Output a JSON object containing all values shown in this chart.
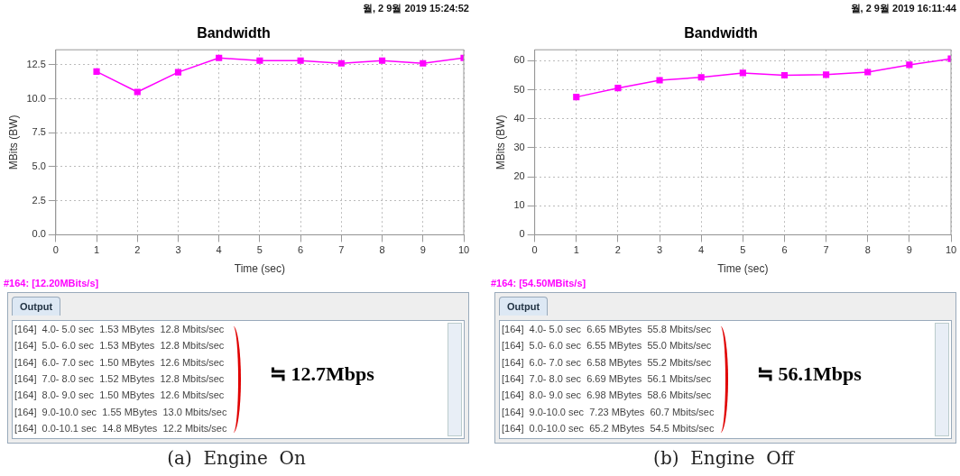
{
  "chart_data": [
    {
      "type": "line",
      "title": "Bandwidth",
      "xlabel": "Time (sec)",
      "ylabel": "MBits (BW)",
      "x": [
        1,
        2,
        3,
        4,
        5,
        6,
        7,
        8,
        9,
        10
      ],
      "series": [
        {
          "color": "#ff00ff",
          "values": [
            12.0,
            10.5,
            11.95,
            13.0,
            12.8,
            12.8,
            12.6,
            12.8,
            12.6,
            13.0
          ]
        }
      ],
      "xlim": [
        0,
        10
      ],
      "xticks": [
        0,
        1,
        2,
        3,
        4,
        5,
        6,
        7,
        8,
        9,
        10
      ],
      "ylim": [
        0,
        13.6
      ],
      "yticks": [
        {
          "value": 0,
          "label": "0.0"
        },
        2.5,
        {
          "value": 5,
          "label": "5.0"
        },
        7.5,
        {
          "value": 10,
          "label": "10.0"
        },
        12.5
      ],
      "grid": true,
      "legend": false,
      "marker": "square",
      "line_style": "solid",
      "annotations": [
        "월, 2 9월 2019 15:24:52",
        "#164: [12.20MBits/s]",
        "Output",
        "[164]  4.0- 5.0 sec  1.53 MBytes  12.8 Mbits/sec",
        "[164]  5.0- 6.0 sec  1.53 MBytes  12.8 Mbits/sec",
        "[164]  6.0- 7.0 sec  1.50 MBytes  12.6 Mbits/sec",
        "[164]  7.0- 8.0 sec  1.52 MBytes  12.8 Mbits/sec",
        "[164]  8.0- 9.0 sec  1.50 MBytes  12.6 Mbits/sec",
        "[164]  9.0-10.0 sec  1.55 MBytes  13.0 Mbits/sec",
        "[164]  0.0-10.1 sec  14.8 MBytes  12.2 Mbits/sec",
        "≒ 12.7Mbps",
        "(a)  Engine  On"
      ]
    },
    {
      "type": "line",
      "title": "Bandwidth",
      "xlabel": "Time (sec)",
      "ylabel": "MBits (BW)",
      "x": [
        1,
        2,
        3,
        4,
        5,
        6,
        7,
        8,
        9,
        10
      ],
      "series": [
        {
          "color": "#ff00ff",
          "values": [
            47.5,
            50.6,
            53.3,
            54.3,
            55.8,
            55.0,
            55.2,
            56.1,
            58.6,
            60.7
          ]
        }
      ],
      "xlim": [
        0,
        10
      ],
      "xticks": [
        0,
        1,
        2,
        3,
        4,
        5,
        6,
        7,
        8,
        9,
        10
      ],
      "ylim": [
        0,
        63.8
      ],
      "yticks": [
        0,
        10,
        20,
        30,
        40,
        50,
        60
      ],
      "grid": true,
      "legend": false,
      "marker": "square",
      "line_style": "solid",
      "annotations": [
        "월, 2 9월 2019 16:11:44",
        "#164: [54.50MBits/s]",
        "Output",
        "[164]  4.0- 5.0 sec  6.65 MBytes  55.8 Mbits/sec",
        "[164]  5.0- 6.0 sec  6.55 MBytes  55.0 Mbits/sec",
        "[164]  6.0- 7.0 sec  6.58 MBytes  55.2 Mbits/sec",
        "[164]  7.0- 8.0 sec  6.69 MBytes  56.1 Mbits/sec",
        "[164]  8.0- 9.0 sec  6.98 MBytes  58.6 Mbits/sec",
        "[164]  9.0-10.0 sec  7.23 MBytes  60.7 Mbits/sec",
        "[164]  0.0-10.0 sec  65.2 MBytes  54.5 Mbits/sec",
        "≒ 56.1Mbps",
        "(b)  Engine  Off"
      ]
    }
  ]
}
